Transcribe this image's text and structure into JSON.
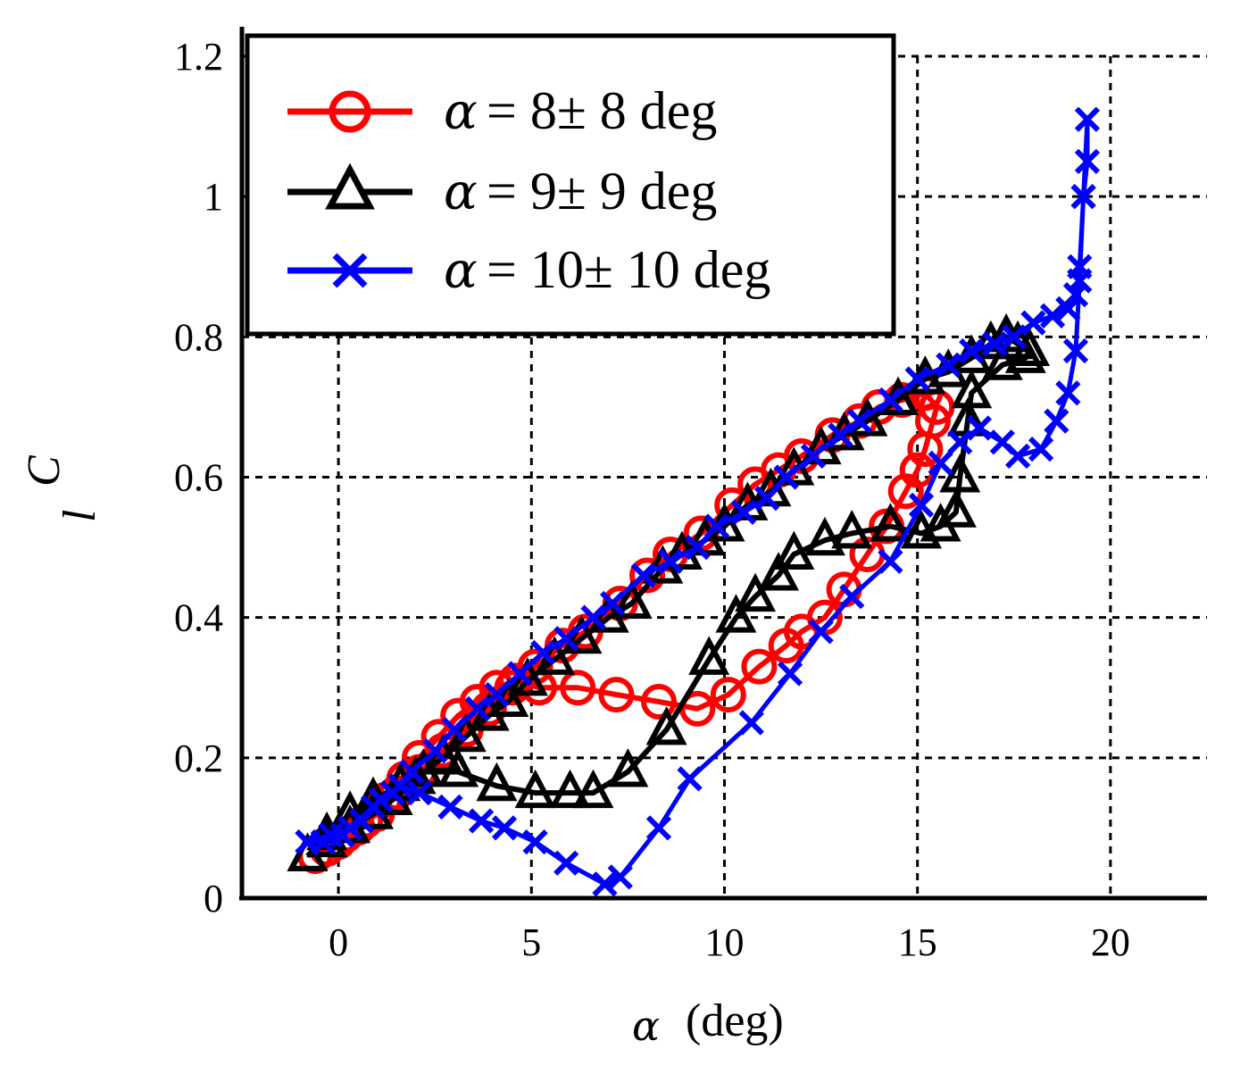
{
  "chart_data": {
    "type": "line",
    "xlabel_symbol": "α",
    "xlabel_unit": "(deg)",
    "ylabel_main": "C",
    "ylabel_sub": "l",
    "xlim": [
      -2.5,
      22.5
    ],
    "ylim": [
      0,
      1.2
    ],
    "xticks": [
      0,
      5,
      10,
      15,
      20
    ],
    "yticks": [
      0,
      0.2,
      0.4,
      0.6,
      0.8,
      1,
      1.2
    ],
    "ytick_labels": [
      "0",
      "0.2",
      "0.4",
      "0.6",
      "0.8",
      "1",
      "1.2"
    ],
    "grid": true,
    "legend_position": "top-left",
    "series": [
      {
        "name": "α = 8± 8 deg",
        "legend_symbol": "α",
        "legend_text": "= 8± 8 deg",
        "color": "#ff0000",
        "marker": "circle",
        "points": [
          [
            -0.6,
            0.06
          ],
          [
            -0.3,
            0.07
          ],
          [
            0.2,
            0.09
          ],
          [
            0.7,
            0.11
          ],
          [
            1.2,
            0.14
          ],
          [
            1.7,
            0.17
          ],
          [
            2.1,
            0.2
          ],
          [
            2.6,
            0.23
          ],
          [
            3.1,
            0.26
          ],
          [
            3.6,
            0.28
          ],
          [
            4.1,
            0.3
          ],
          [
            4.6,
            0.31
          ],
          [
            5.2,
            0.3
          ],
          [
            6.2,
            0.3
          ],
          [
            7.2,
            0.29
          ],
          [
            8.3,
            0.28
          ],
          [
            9.3,
            0.27
          ],
          [
            10.1,
            0.29
          ],
          [
            10.9,
            0.33
          ],
          [
            11.6,
            0.36
          ],
          [
            12.0,
            0.38
          ],
          [
            12.6,
            0.4
          ],
          [
            13.1,
            0.44
          ],
          [
            13.7,
            0.49
          ],
          [
            14.2,
            0.53
          ],
          [
            14.7,
            0.58
          ],
          [
            15.0,
            0.61
          ],
          [
            15.2,
            0.64
          ],
          [
            15.4,
            0.68
          ],
          [
            15.5,
            0.7
          ],
          [
            15.2,
            0.72
          ],
          [
            14.6,
            0.71
          ],
          [
            14.0,
            0.7
          ],
          [
            13.5,
            0.68
          ],
          [
            12.8,
            0.66
          ],
          [
            12.0,
            0.63
          ],
          [
            11.4,
            0.61
          ],
          [
            10.8,
            0.59
          ],
          [
            10.2,
            0.56
          ],
          [
            9.4,
            0.52
          ],
          [
            8.6,
            0.49
          ],
          [
            8.0,
            0.46
          ],
          [
            7.3,
            0.42
          ],
          [
            6.4,
            0.38
          ],
          [
            5.8,
            0.36
          ],
          [
            5.1,
            0.33
          ],
          [
            4.5,
            0.3
          ],
          [
            3.9,
            0.27
          ],
          [
            3.3,
            0.24
          ],
          [
            2.7,
            0.21
          ],
          [
            2.1,
            0.18
          ],
          [
            1.5,
            0.15
          ],
          [
            1.0,
            0.12
          ],
          [
            0.5,
            0.1
          ],
          [
            0.0,
            0.08
          ],
          [
            -0.6,
            0.06
          ]
        ]
      },
      {
        "name": "α = 9± 9 deg",
        "legend_symbol": "α",
        "legend_text": "= 9± 9 deg",
        "color": "#000000",
        "marker": "triangle",
        "points": [
          [
            -0.8,
            0.06
          ],
          [
            -0.3,
            0.09
          ],
          [
            0.3,
            0.12
          ],
          [
            0.9,
            0.14
          ],
          [
            1.6,
            0.16
          ],
          [
            2.2,
            0.18
          ],
          [
            3.1,
            0.18
          ],
          [
            4.1,
            0.16
          ],
          [
            5.1,
            0.15
          ],
          [
            6.0,
            0.15
          ],
          [
            6.6,
            0.15
          ],
          [
            7.5,
            0.18
          ],
          [
            8.5,
            0.24
          ],
          [
            9.6,
            0.34
          ],
          [
            10.3,
            0.4
          ],
          [
            10.8,
            0.43
          ],
          [
            11.4,
            0.46
          ],
          [
            11.8,
            0.49
          ],
          [
            12.6,
            0.51
          ],
          [
            13.3,
            0.52
          ],
          [
            14.3,
            0.53
          ],
          [
            15.1,
            0.52
          ],
          [
            15.6,
            0.53
          ],
          [
            16.0,
            0.55
          ],
          [
            16.1,
            0.6
          ],
          [
            16.3,
            0.68
          ],
          [
            16.4,
            0.72
          ],
          [
            17.2,
            0.76
          ],
          [
            17.8,
            0.77
          ],
          [
            17.9,
            0.78
          ],
          [
            17.6,
            0.79
          ],
          [
            17.3,
            0.8
          ],
          [
            16.9,
            0.79
          ],
          [
            16.4,
            0.77
          ],
          [
            15.8,
            0.75
          ],
          [
            15.2,
            0.74
          ],
          [
            14.5,
            0.71
          ],
          [
            13.7,
            0.68
          ],
          [
            13.1,
            0.66
          ],
          [
            12.5,
            0.64
          ],
          [
            11.8,
            0.61
          ],
          [
            11.2,
            0.58
          ],
          [
            10.6,
            0.56
          ],
          [
            10.0,
            0.53
          ],
          [
            9.5,
            0.51
          ],
          [
            8.9,
            0.49
          ],
          [
            8.4,
            0.47
          ],
          [
            7.6,
            0.42
          ],
          [
            7.0,
            0.4
          ],
          [
            6.3,
            0.37
          ],
          [
            5.6,
            0.34
          ],
          [
            4.9,
            0.31
          ],
          [
            4.4,
            0.28
          ],
          [
            3.9,
            0.26
          ],
          [
            3.3,
            0.23
          ],
          [
            2.7,
            0.2
          ],
          [
            2.0,
            0.17
          ],
          [
            1.4,
            0.14
          ],
          [
            0.9,
            0.12
          ],
          [
            0.3,
            0.1
          ],
          [
            -0.3,
            0.08
          ],
          [
            -0.8,
            0.06
          ]
        ]
      },
      {
        "name": "α = 10± 10 deg",
        "legend_symbol": "α",
        "legend_text": "= 10± 10 deg",
        "color": "#0000ff",
        "marker": "x",
        "points": [
          [
            -0.8,
            0.08
          ],
          [
            -0.4,
            0.08
          ],
          [
            0.1,
            0.09
          ],
          [
            0.6,
            0.11
          ],
          [
            1.1,
            0.14
          ],
          [
            1.6,
            0.16
          ],
          [
            2.1,
            0.15
          ],
          [
            2.9,
            0.13
          ],
          [
            3.7,
            0.11
          ],
          [
            4.3,
            0.1
          ],
          [
            5.1,
            0.08
          ],
          [
            5.9,
            0.05
          ],
          [
            6.9,
            0.02
          ],
          [
            7.3,
            0.03
          ],
          [
            8.3,
            0.1
          ],
          [
            9.1,
            0.17
          ],
          [
            10.7,
            0.25
          ],
          [
            11.7,
            0.32
          ],
          [
            12.5,
            0.38
          ],
          [
            13.3,
            0.43
          ],
          [
            14.3,
            0.48
          ],
          [
            15.1,
            0.56
          ],
          [
            15.6,
            0.62
          ],
          [
            16.1,
            0.65
          ],
          [
            16.6,
            0.67
          ],
          [
            17.2,
            0.65
          ],
          [
            17.6,
            0.63
          ],
          [
            18.2,
            0.64
          ],
          [
            18.6,
            0.68
          ],
          [
            18.9,
            0.72
          ],
          [
            19.1,
            0.78
          ],
          [
            19.2,
            0.88
          ],
          [
            19.3,
            1.0
          ],
          [
            19.4,
            1.05
          ],
          [
            19.4,
            1.11
          ],
          [
            19.3,
            1.0
          ],
          [
            19.2,
            0.9
          ],
          [
            19.1,
            0.86
          ],
          [
            18.9,
            0.84
          ],
          [
            18.5,
            0.83
          ],
          [
            18.0,
            0.82
          ],
          [
            17.5,
            0.8
          ],
          [
            17.0,
            0.79
          ],
          [
            16.4,
            0.78
          ],
          [
            15.8,
            0.76
          ],
          [
            15.0,
            0.74
          ],
          [
            14.3,
            0.71
          ],
          [
            13.5,
            0.68
          ],
          [
            13.0,
            0.66
          ],
          [
            12.3,
            0.63
          ],
          [
            11.6,
            0.6
          ],
          [
            11.1,
            0.57
          ],
          [
            10.5,
            0.55
          ],
          [
            9.8,
            0.53
          ],
          [
            9.3,
            0.5
          ],
          [
            8.6,
            0.48
          ],
          [
            7.9,
            0.46
          ],
          [
            7.1,
            0.42
          ],
          [
            6.6,
            0.4
          ],
          [
            5.9,
            0.37
          ],
          [
            5.3,
            0.35
          ],
          [
            4.7,
            0.32
          ],
          [
            4.1,
            0.29
          ],
          [
            3.6,
            0.27
          ],
          [
            3.0,
            0.24
          ],
          [
            2.5,
            0.21
          ],
          [
            1.9,
            0.18
          ],
          [
            1.4,
            0.15
          ],
          [
            0.9,
            0.13
          ],
          [
            0.3,
            0.1
          ],
          [
            -0.2,
            0.09
          ],
          [
            -0.8,
            0.08
          ]
        ]
      }
    ]
  }
}
